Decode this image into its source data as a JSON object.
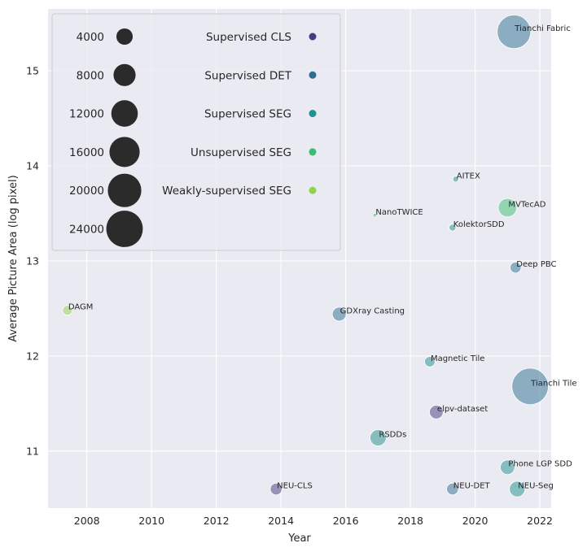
{
  "chart_data": {
    "type": "scatter",
    "title": "",
    "xlabel": "Year",
    "ylabel": "Average Picture Area (log pixel)",
    "xlim": [
      2006.8,
      2022.35
    ],
    "ylim": [
      10.4,
      15.65
    ],
    "xticks": [
      "2008",
      "2010",
      "2012",
      "2014",
      "2016",
      "2018",
      "2020",
      "2022"
    ],
    "yticks": [
      "11",
      "12",
      "13",
      "14",
      "15"
    ],
    "grid": true,
    "size_legend": {
      "values": [
        "4000",
        "8000",
        "12000",
        "16000",
        "20000",
        "24000"
      ],
      "color": "#2b2b2b"
    },
    "hue_legend": [
      {
        "name": "Supervised CLS",
        "color": "#463a82"
      },
      {
        "name": "Supervised DET",
        "color": "#2d6d8f"
      },
      {
        "name": "Supervised SEG",
        "color": "#21918c"
      },
      {
        "name": "Unsupervised SEG",
        "color": "#3dbb74"
      },
      {
        "name": "Weakly-supervised SEG",
        "color": "#8fd44b"
      }
    ],
    "points": [
      {
        "label": "Tianchi Fabric",
        "x": 2021.2,
        "y": 15.41,
        "size": 20000,
        "category": "Supervised DET"
      },
      {
        "label": "AITEX",
        "x": 2019.4,
        "y": 13.86,
        "size": 245,
        "category": "Supervised SEG"
      },
      {
        "label": "MVTecAD",
        "x": 2021.0,
        "y": 13.56,
        "size": 5354,
        "category": "Unsupervised SEG"
      },
      {
        "label": "NanoTWICE",
        "x": 2016.9,
        "y": 13.48,
        "size": 45,
        "category": "Unsupervised SEG"
      },
      {
        "label": "KolektorSDD",
        "x": 2019.3,
        "y": 13.35,
        "size": 399,
        "category": "Supervised SEG"
      },
      {
        "label": "Deep PBC",
        "x": 2021.25,
        "y": 12.93,
        "size": 1500,
        "category": "Supervised DET"
      },
      {
        "label": "DAGM",
        "x": 2007.4,
        "y": 12.48,
        "size": 1100,
        "category": "Weakly-supervised SEG"
      },
      {
        "label": "GDXray Casting",
        "x": 2015.8,
        "y": 12.44,
        "size": 2700,
        "category": "Supervised DET"
      },
      {
        "label": "Magnetic Tile",
        "x": 2018.6,
        "y": 11.94,
        "size": 1344,
        "category": "Supervised SEG"
      },
      {
        "label": "Tianchi Tile",
        "x": 2021.7,
        "y": 11.68,
        "size": 24000,
        "category": "Supervised DET"
      },
      {
        "label": "elpv-dataset",
        "x": 2018.8,
        "y": 11.41,
        "size": 2624,
        "category": "Supervised CLS"
      },
      {
        "label": "RSDDs",
        "x": 2017.0,
        "y": 11.14,
        "size": 3900,
        "category": "Supervised SEG"
      },
      {
        "label": "Phone LGP SDD",
        "x": 2021.0,
        "y": 10.83,
        "size": 3000,
        "category": "Supervised SEG"
      },
      {
        "label": "NEU-CLS",
        "x": 2013.85,
        "y": 10.6,
        "size": 1800,
        "category": "Supervised CLS"
      },
      {
        "label": "NEU-DET",
        "x": 2019.3,
        "y": 10.6,
        "size": 1800,
        "category": "Supervised DET"
      },
      {
        "label": "NEU-Seg",
        "x": 2021.3,
        "y": 10.6,
        "size": 3600,
        "category": "Supervised SEG"
      }
    ]
  }
}
